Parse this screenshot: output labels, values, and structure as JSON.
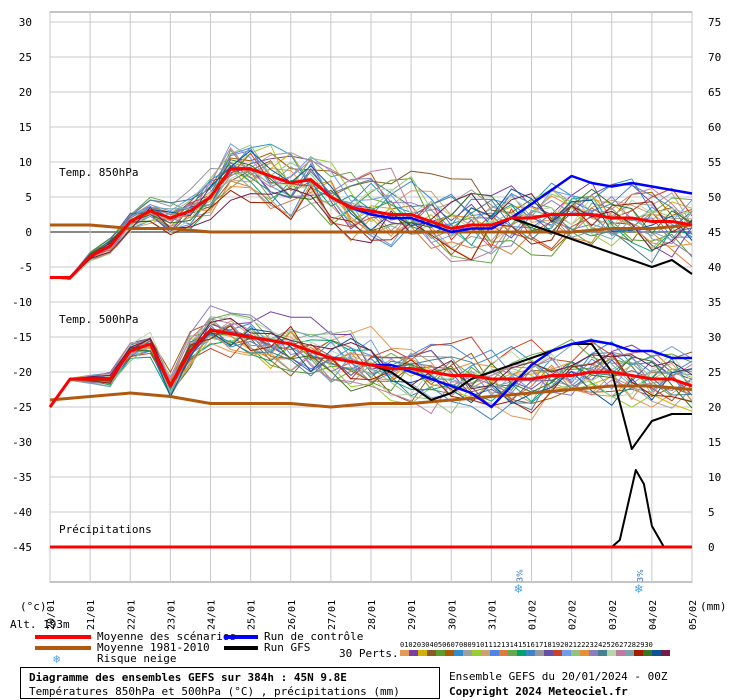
{
  "chart_data": {
    "type": "line",
    "title": "Diagramme des ensembles GEFS sur 384h : 45N 9.8E",
    "subtitle": "Températures 850hPa et 500hPa (°C) , précipitations (mm)",
    "left_axis": {
      "unit_label": "(°c)",
      "ticks": [
        "30",
        "25",
        "20",
        "15",
        "10",
        "5",
        "0",
        "-5",
        "-10",
        "-15",
        "-20",
        "-25",
        "-30",
        "-35",
        "-40",
        "-45"
      ],
      "range": [
        -45,
        30
      ]
    },
    "right_axis": {
      "unit_label": "(mm)",
      "ticks": [
        "75",
        "70",
        "65",
        "60",
        "55",
        "50",
        "45",
        "40",
        "35",
        "30",
        "25",
        "20",
        "15",
        "10",
        "5",
        "0"
      ],
      "range": [
        0,
        75
      ]
    },
    "x_ticks": [
      "20/01",
      "21/01",
      "22/01",
      "23/01",
      "24/01",
      "25/01",
      "26/01",
      "27/01",
      "28/01",
      "29/01",
      "30/01",
      "31/01",
      "01/02",
      "02/02",
      "03/02",
      "04/02",
      "05/02"
    ],
    "x_range_days": [
      0,
      16
    ],
    "grid": true,
    "panel_labels": {
      "t850": "Temp. 850hPa",
      "t500": "Temp. 500hPa",
      "precip": "Précipitations"
    },
    "snow_risk_marks": [
      {
        "day": 11.7,
        "label": "3%"
      },
      {
        "day": 14.7,
        "label": "3%"
      }
    ],
    "series": [
      {
        "name": "Moyenne des scénarios",
        "panel": "t850",
        "x": [
          0,
          0.5,
          1,
          1.5,
          2,
          2.5,
          3,
          3.5,
          4,
          4.5,
          5,
          5.5,
          6,
          6.5,
          7,
          7.5,
          8,
          8.5,
          9,
          9.5,
          10,
          10.5,
          11,
          11.5,
          12,
          12.5,
          13,
          13.5,
          14,
          14.5,
          15,
          15.5,
          16
        ],
        "y": [
          -6.5,
          -6.5,
          -3.5,
          -2,
          1.5,
          3,
          2,
          3,
          5,
          9,
          9,
          8,
          7,
          7.5,
          5,
          3.5,
          3,
          2.5,
          2.5,
          1.5,
          0.5,
          1,
          1,
          2,
          2,
          2.5,
          2.5,
          2.5,
          2,
          2,
          1.5,
          1.5,
          1
        ]
      },
      {
        "name": "Run de contrôle",
        "panel": "t850",
        "x": [
          0,
          0.5,
          1,
          1.5,
          2,
          2.5,
          3,
          3.5,
          4,
          4.5,
          5,
          5.5,
          6,
          6.5,
          7,
          7.5,
          8,
          8.5,
          9,
          9.5,
          10,
          10.5,
          11,
          11.5,
          12,
          12.5,
          13,
          13.5,
          14,
          14.5,
          15,
          15.5,
          16
        ],
        "y": [
          -6.5,
          -6.5,
          -3.5,
          -2,
          1.5,
          3,
          2,
          3,
          5,
          9,
          9,
          8,
          7,
          7.5,
          5,
          3.5,
          2.5,
          2,
          2,
          1,
          0,
          0.5,
          0.5,
          2,
          4,
          6,
          8,
          7,
          6.5,
          7,
          6.5,
          6,
          5.5
        ]
      },
      {
        "name": "Run GFS",
        "panel": "t850",
        "x": [
          0,
          0.5,
          1,
          1.5,
          2,
          2.5,
          3,
          3.5,
          4,
          4.5,
          5,
          5.5,
          6,
          6.5,
          7,
          7.5,
          8,
          8.5,
          9,
          9.5,
          10,
          10.5,
          11,
          11.5,
          12,
          12.5,
          13,
          13.5,
          14,
          14.5,
          15,
          15.5,
          16
        ],
        "y": [
          -6.5,
          -6.5,
          -3.5,
          -2,
          1.5,
          3,
          2,
          3,
          5,
          9,
          9,
          8,
          7,
          7.5,
          5,
          3.5,
          3,
          2.5,
          2.5,
          1.5,
          0.5,
          1,
          1,
          2,
          1,
          0,
          -1,
          -2,
          -3,
          -4,
          -5,
          -4,
          -6
        ]
      },
      {
        "name": "Moyenne 1981-2010",
        "panel": "t850",
        "x": [
          0,
          1,
          2,
          3,
          4,
          5,
          6,
          7,
          8,
          9,
          10,
          11,
          12,
          13,
          14,
          15,
          16
        ],
        "y": [
          1,
          1,
          0.5,
          0.5,
          0,
          0,
          0,
          0,
          0,
          0,
          0,
          0,
          0,
          0,
          0.5,
          0.5,
          1
        ]
      },
      {
        "name": "Moyenne des scénarios",
        "panel": "t500",
        "x": [
          0,
          0.5,
          1,
          1.5,
          2,
          2.5,
          3,
          3.5,
          4,
          4.5,
          5,
          5.5,
          6,
          6.5,
          7,
          7.5,
          8,
          8.5,
          9,
          9.5,
          10,
          10.5,
          11,
          11.5,
          12,
          12.5,
          13,
          13.5,
          14,
          14.5,
          15,
          15.5,
          16
        ],
        "y": [
          -25,
          -21,
          -21,
          -21,
          -17,
          -16,
          -22,
          -17,
          -14,
          -14.5,
          -15,
          -15.5,
          -16,
          -17,
          -18,
          -18.5,
          -19,
          -19.5,
          -19.5,
          -20,
          -20.5,
          -20.5,
          -21,
          -21,
          -21,
          -20.5,
          -20.5,
          -20,
          -20,
          -20.5,
          -21,
          -21,
          -22
        ]
      },
      {
        "name": "Run de contrôle",
        "panel": "t500",
        "x": [
          0,
          0.5,
          1,
          1.5,
          2,
          2.5,
          3,
          3.5,
          4,
          4.5,
          5,
          5.5,
          6,
          6.5,
          7,
          7.5,
          8,
          8.5,
          9,
          9.5,
          10,
          10.5,
          11,
          11.5,
          12,
          12.5,
          13,
          13.5,
          14,
          14.5,
          15,
          15.5,
          16
        ],
        "y": [
          -25,
          -21,
          -21,
          -21,
          -17,
          -16,
          -22,
          -17,
          -14,
          -14.5,
          -15,
          -15.5,
          -16,
          -17,
          -18,
          -18.5,
          -19,
          -19,
          -20,
          -21,
          -22,
          -23,
          -25,
          -22,
          -19,
          -17,
          -16,
          -15.5,
          -16,
          -17,
          -17,
          -18,
          -18
        ]
      },
      {
        "name": "Run GFS",
        "panel": "t500",
        "x": [
          0,
          0.5,
          1,
          1.5,
          2,
          2.5,
          3,
          3.5,
          4,
          4.5,
          5,
          5.5,
          6,
          6.5,
          7,
          7.5,
          8,
          8.5,
          9,
          9.5,
          10,
          10.5,
          11,
          11.5,
          12,
          12.5,
          13,
          13.5,
          14,
          14.5,
          15,
          15.5,
          16
        ],
        "y": [
          -25,
          -21,
          -21,
          -21,
          -17,
          -16,
          -22,
          -17,
          -14,
          -14.5,
          -15,
          -15.5,
          -16,
          -17,
          -18,
          -18.5,
          -19,
          -20,
          -22,
          -24,
          -23,
          -21,
          -20,
          -19,
          -18,
          -17,
          -16,
          -16,
          -20,
          -31,
          -27,
          -26,
          -26
        ]
      },
      {
        "name": "Moyenne 1981-2010",
        "panel": "t500",
        "x": [
          0,
          1,
          2,
          3,
          4,
          5,
          6,
          7,
          8,
          9,
          10,
          11,
          12,
          13,
          14,
          15,
          16
        ],
        "y": [
          -24,
          -23.5,
          -23,
          -23.5,
          -24.5,
          -24.5,
          -24.5,
          -25,
          -24.5,
          -24.5,
          -24,
          -23.5,
          -23,
          -22.5,
          -22,
          -22,
          -22.5
        ]
      },
      {
        "name": "Run GFS",
        "panel": "precip",
        "x": [
          0,
          13,
          13.5,
          14,
          14.2,
          14.4,
          14.6,
          14.8,
          15,
          15.3,
          16
        ],
        "y": [
          0,
          0,
          0,
          0,
          1,
          6,
          11,
          9,
          3,
          0,
          0
        ]
      },
      {
        "name": "Moyenne des scénarios",
        "panel": "precip",
        "x": [
          0,
          16
        ],
        "y": [
          0,
          0
        ]
      }
    ],
    "perturbations": {
      "count_label": "30 Perts.",
      "numbers": [
        "01",
        "02",
        "03",
        "04",
        "05",
        "06",
        "07",
        "08",
        "09",
        "10",
        "11",
        "12",
        "13",
        "14",
        "15",
        "16",
        "17",
        "18",
        "19",
        "20",
        "21",
        "22",
        "23",
        "24",
        "25",
        "26",
        "27",
        "28",
        "29",
        "30"
      ],
      "colors": [
        "#e69a55",
        "#7b3fa0",
        "#d2b100",
        "#8b5a2b",
        "#5a9e2b",
        "#b05a00",
        "#2c8ecf",
        "#a0a0a0",
        "#9acd32",
        "#cfa070",
        "#4a86e8",
        "#e07b39",
        "#6aa84f",
        "#00a36c",
        "#3d85c6",
        "#999999",
        "#674ea7",
        "#cc4125",
        "#6d9eeb",
        "#93c47d",
        "#e69138",
        "#8e7cc3",
        "#45818e",
        "#b6d7a8",
        "#c27ba0",
        "#76a5af",
        "#a61c00",
        "#38761d",
        "#0b5394",
        "#741b47"
      ]
    },
    "legend": {
      "placement": "bottom-left",
      "entries": [
        {
          "label": "Moyenne des scénarios",
          "color": "#ff0000"
        },
        {
          "label": "Moyenne 1981-2010",
          "color": "#b05a10"
        },
        {
          "label": "Risque neige",
          "color": "#4aa3df"
        },
        {
          "label": "Run de contrôle",
          "color": "#0000ff"
        },
        {
          "label": "Run GFS",
          "color": "#000000"
        }
      ]
    },
    "altitude_label": "Alt. 193m",
    "run_info": "Ensemble GEFS du 20/01/2024 - 00Z",
    "copyright": "Copyright 2024 Meteociel.fr"
  }
}
